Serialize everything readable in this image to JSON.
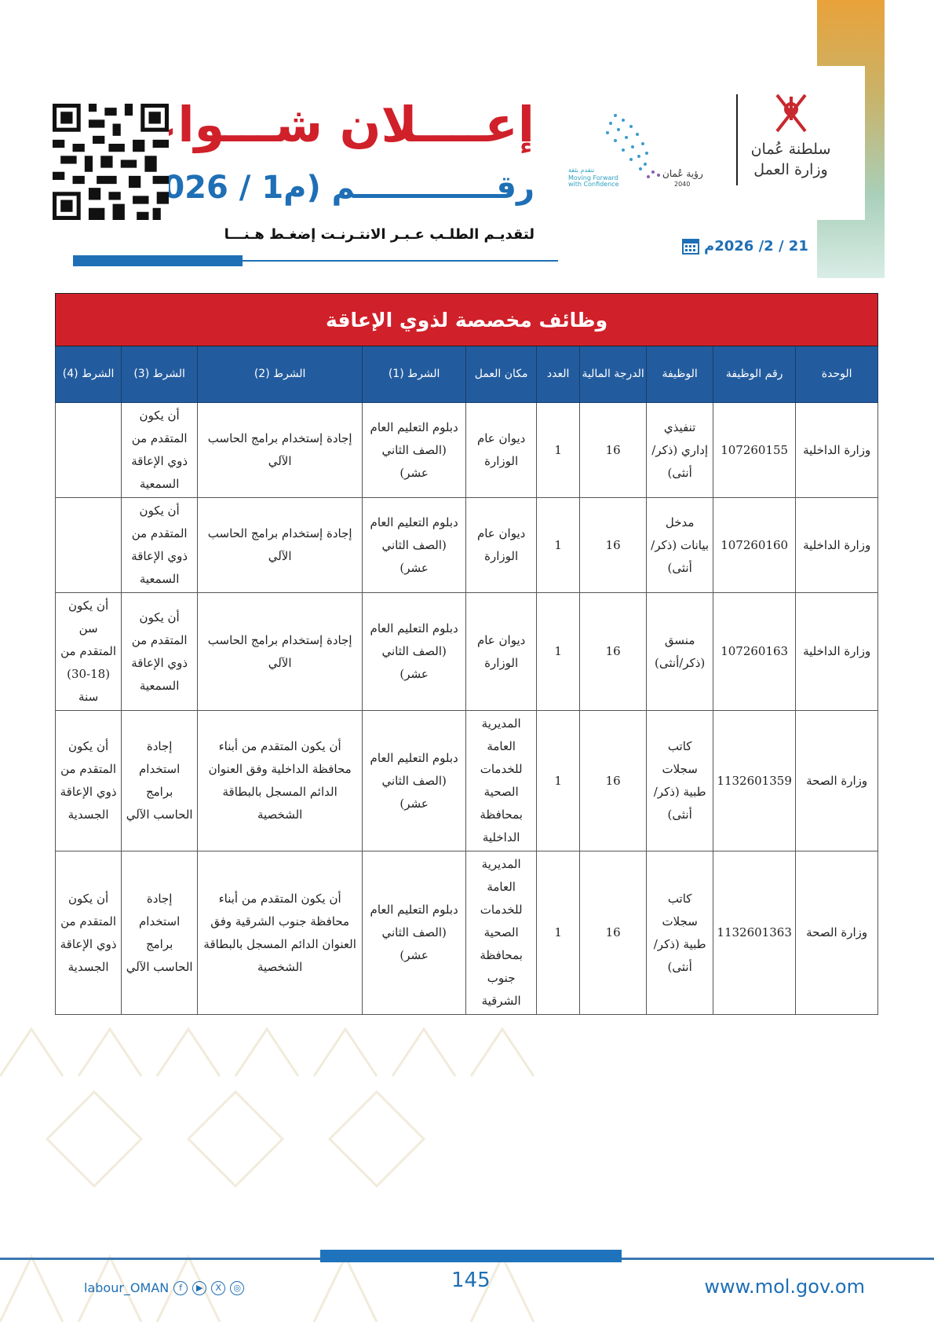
{
  "header": {
    "title": "إعــــلان شـــواغـر",
    "number": "رقـــــــــــــم (م1 / 2026)",
    "apply_text": "لتقديـم الطلـب عـبـر الانتـرنـت إضغـط هـنـــا",
    "date": "21 / 2/ 2026م",
    "ministry_logo": "سلطنة عُمان وزارة العمل",
    "vision_logo": "رؤية عُمان 2040 - Moving Forward with Confidence"
  },
  "table": {
    "caption": "وظائف مخصصة لذوي الإعاقة",
    "columns": [
      "الوحدة",
      "رقم الوظيفة",
      "الوظيفة",
      "الدرجة المالية",
      "العدد",
      "مكان العمل",
      "الشرط (1)",
      "الشرط (2)",
      "الشرط (3)",
      "الشرط (4)"
    ],
    "rows": [
      [
        "وزارة الداخلية",
        "107260155",
        "تنفيذي إداري (ذكر/أنثى)",
        "16",
        "1",
        "ديوان عام الوزارة",
        "دبلوم التعليم العام (الصف الثاني عشر)",
        "إجادة إستخدام برامج الحاسب الآلي",
        "أن يكون المتقدم من ذوي الإعاقة السمعية",
        ""
      ],
      [
        "وزارة الداخلية",
        "107260160",
        "مدخل بيانات (ذكر/أنثى)",
        "16",
        "1",
        "ديوان عام الوزارة",
        "دبلوم التعليم العام (الصف الثاني عشر)",
        "إجادة إستخدام برامج الحاسب الآلي",
        "أن يكون المتقدم من ذوي الإعاقة السمعية",
        ""
      ],
      [
        "وزارة الداخلية",
        "107260163",
        "منسق (ذكر/أنثى)",
        "16",
        "1",
        "ديوان عام الوزارة",
        "دبلوم التعليم العام (الصف الثاني عشر)",
        "إجادة إستخدام برامج الحاسب الآلي",
        "أن يكون المتقدم من ذوي الإعاقة السمعية",
        "أن يكون سن المتقدم من (18-30) سنة"
      ],
      [
        "وزارة الصحة",
        "1132601359",
        "كاتب سجلات طبية (ذكر/أنثى)",
        "16",
        "1",
        "المديرية العامة للخدمات الصحية بمحافظة الداخلية",
        "دبلوم التعليم العام (الصف الثاني عشر)",
        "أن يكون المتقدم من أبناء محافظة الداخلية وفق العنوان الدائم المسجل بالبطاقة الشخصية",
        "إجادة استخدام برامج الحاسب الآلي",
        "أن يكون المتقدم من ذوي الإعاقة الجسدية"
      ],
      [
        "وزارة الصحة",
        "1132601363",
        "كاتب سجلات طبية (ذكر/أنثى)",
        "16",
        "1",
        "المديرية العامة للخدمات الصحية بمحافظة جنوب الشرقية",
        "دبلوم التعليم العام (الصف الثاني عشر)",
        "أن يكون المتقدم من أبناء محافظة جنوب الشرقية وفق العنوان الدائم المسجل بالبطاقة الشخصية",
        "إجادة استخدام برامج الحاسب الآلي",
        "أن يكون المتقدم من ذوي الإعاقة الجسدية"
      ]
    ]
  },
  "footer": {
    "social_handle": "labour_OMAN",
    "page_number": "145",
    "website": "www.mol.gov.om",
    "social_icons": [
      "facebook-icon",
      "youtube-icon",
      "x-icon",
      "instagram-icon"
    ]
  },
  "colors": {
    "red": "#d0202a",
    "blue": "#1e6fb5",
    "header_blue": "#235c9e"
  }
}
